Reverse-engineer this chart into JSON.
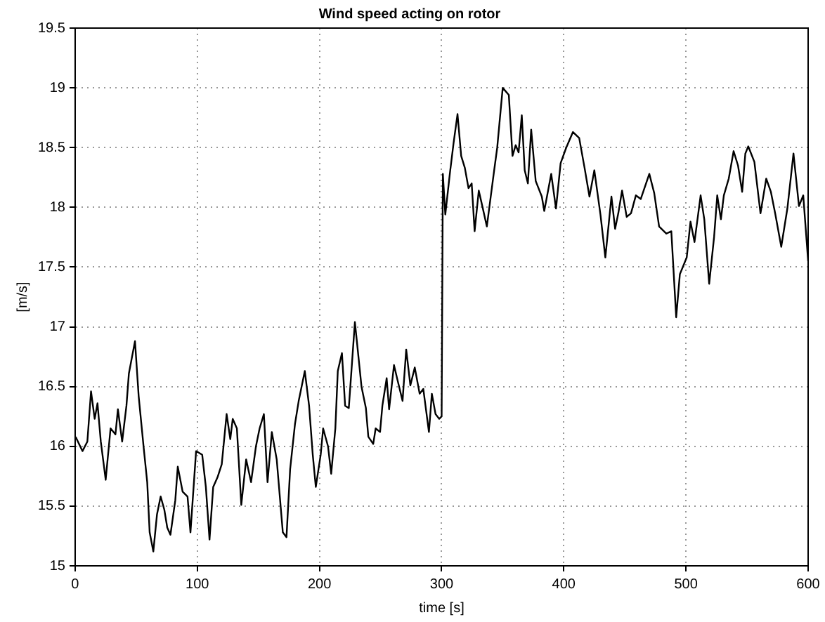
{
  "chart_data": {
    "type": "line",
    "title": "Wind speed acting on rotor",
    "xlabel": "time [s]",
    "ylabel": "[m/s]",
    "xlim": [
      0,
      600
    ],
    "xticks": [
      0,
      100,
      200,
      300,
      400,
      500,
      600
    ],
    "ylim": [
      15,
      19.5
    ],
    "yticks": [
      15,
      15.5,
      16,
      16.5,
      17,
      17.5,
      18,
      18.5,
      19,
      19.5
    ],
    "grid": true,
    "legend": false,
    "marker": "none",
    "line_style": "solid",
    "series": [
      {
        "color": "#000000",
        "x": [
          0.4,
          6,
          10,
          13,
          16,
          18.3,
          21,
          25,
          29,
          33,
          35,
          38.5,
          42,
          44,
          49,
          52,
          56,
          59,
          61,
          64,
          67,
          70,
          73,
          75.4,
          78,
          82,
          84,
          88,
          92,
          94.4,
          99,
          104,
          107,
          110,
          113,
          116.5,
          120,
          124,
          127,
          129,
          132.4,
          136,
          140,
          144,
          148,
          151,
          154.5,
          157.5,
          161,
          165,
          170,
          173,
          176,
          180,
          183,
          188,
          191.5,
          194.5,
          197,
          201,
          203,
          207,
          209.6,
          213,
          215,
          218.4,
          221,
          224,
          229,
          234.4,
          238,
          240,
          244,
          246,
          249.6,
          251.5,
          255,
          257,
          261,
          264,
          268,
          271,
          274.4,
          278,
          282,
          285,
          289.6,
          292,
          295,
          298,
          300,
          301,
          303,
          306.7,
          309.8,
          313,
          316,
          319,
          322,
          324.6,
          327,
          330.4,
          333.3,
          337,
          343,
          345.5,
          350,
          355,
          358,
          360.6,
          363,
          365.6,
          368,
          370.6,
          373.3,
          377,
          382,
          384,
          389.7,
          393.6,
          397.4,
          402,
          407.5,
          412.6,
          417,
          421,
          425,
          430,
          434,
          439,
          442,
          444.6,
          447.7,
          451.5,
          455,
          459,
          463,
          470,
          474,
          478,
          484,
          488,
          492,
          495,
          500.6,
          503.7,
          507,
          512,
          515,
          519,
          523,
          525.6,
          528.6,
          531,
          535,
          539,
          542.6,
          546,
          548.6,
          551,
          556,
          561,
          565.7,
          569.5,
          573,
          578,
          583,
          588,
          592.5,
          596,
          600
        ],
        "values": [
          16.08,
          15.96,
          16.04,
          16.46,
          16.23,
          16.36,
          16.04,
          15.72,
          16.15,
          16.1,
          16.31,
          16.04,
          16.34,
          16.61,
          16.88,
          16.42,
          16,
          15.7,
          15.28,
          15.12,
          15.43,
          15.58,
          15.47,
          15.32,
          15.26,
          15.55,
          15.83,
          15.62,
          15.58,
          15.28,
          15.96,
          15.93,
          15.66,
          15.22,
          15.66,
          15.74,
          15.85,
          16.27,
          16.06,
          16.23,
          16.15,
          15.51,
          15.89,
          15.7,
          16,
          16.15,
          16.27,
          15.7,
          16.12,
          15.89,
          15.28,
          15.24,
          15.81,
          16.19,
          16.38,
          16.63,
          16.34,
          15.93,
          15.66,
          15.93,
          16.15,
          16,
          15.77,
          16.15,
          16.63,
          16.78,
          16.34,
          16.32,
          17.04,
          16.5,
          16.32,
          16.08,
          16.02,
          16.15,
          16.12,
          16.34,
          16.57,
          16.31,
          16.68,
          16.55,
          16.38,
          16.81,
          16.51,
          16.66,
          16.44,
          16.48,
          16.12,
          16.44,
          16.27,
          16.23,
          16.25,
          18.28,
          17.94,
          18.28,
          18.54,
          18.78,
          18.43,
          18.33,
          18.16,
          18.2,
          17.8,
          18.14,
          18.01,
          17.84,
          18.31,
          18.5,
          19.0,
          18.94,
          18.43,
          18.52,
          18.46,
          18.77,
          18.31,
          18.2,
          18.65,
          18.22,
          18.09,
          17.97,
          18.28,
          17.99,
          18.37,
          18.5,
          18.63,
          18.58,
          18.33,
          18.09,
          18.31,
          17.94,
          17.58,
          18.09,
          17.82,
          17.95,
          18.14,
          17.92,
          17.95,
          18.1,
          18.07,
          18.28,
          18.12,
          17.84,
          17.78,
          17.8,
          17.08,
          17.44,
          17.58,
          17.88,
          17.71,
          18.1,
          17.9,
          17.36,
          17.75,
          18.1,
          17.9,
          18.1,
          18.24,
          18.47,
          18.35,
          18.13,
          18.45,
          18.51,
          18.38,
          17.95,
          18.24,
          18.13,
          17.95,
          17.67,
          17.99,
          18.45,
          18.01,
          18.1,
          17.55
        ]
      }
    ]
  }
}
